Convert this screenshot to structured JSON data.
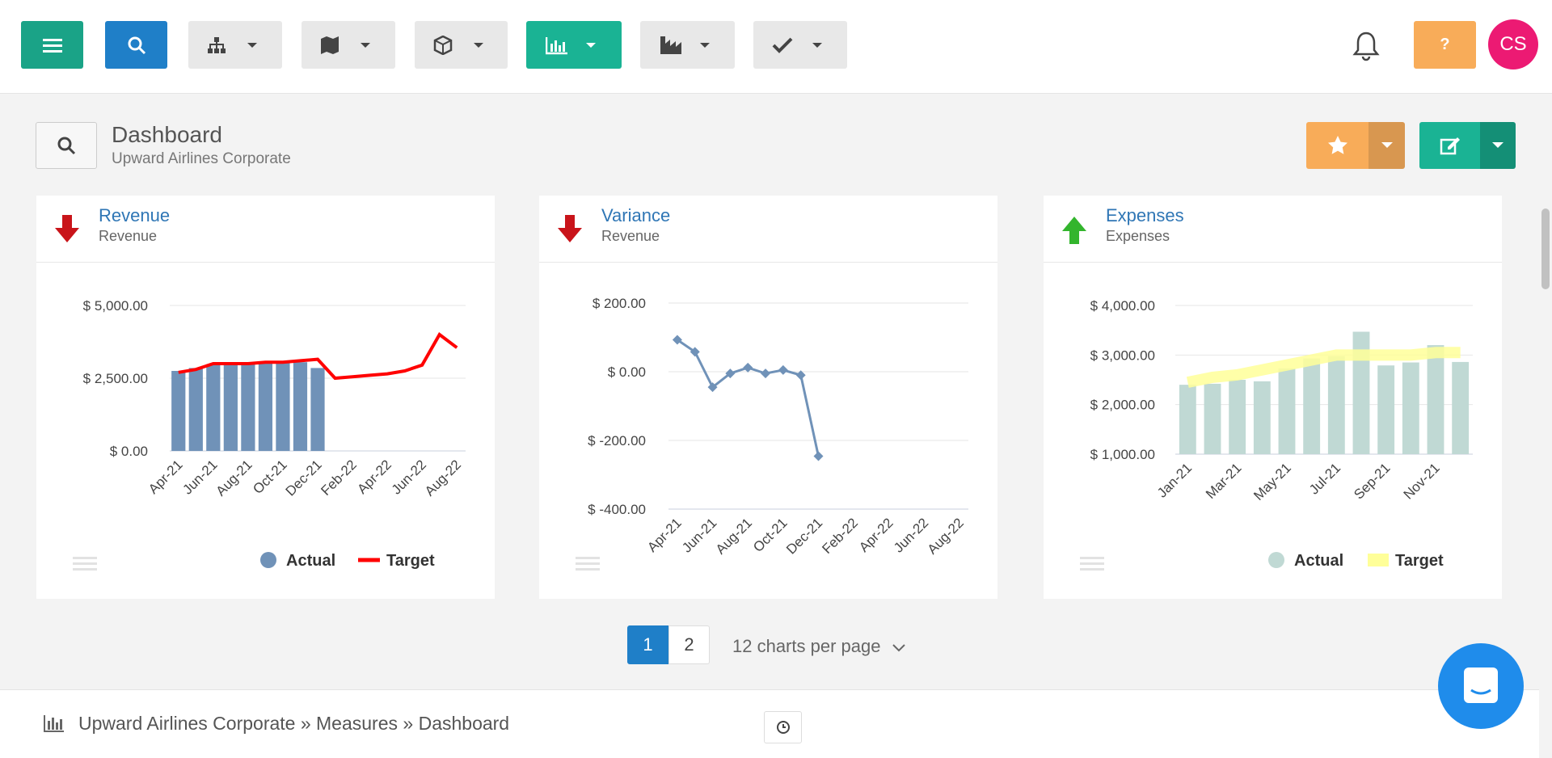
{
  "header": {
    "help_button": "?",
    "avatar": "CS"
  },
  "dashboard": {
    "title": "Dashboard",
    "subtitle": "Upward Airlines Corporate"
  },
  "charts": [
    {
      "title": "Revenue",
      "subtitle": "Revenue",
      "chart_data": {
        "type": "bar",
        "categories": [
          "Apr-21",
          null,
          "Jun-21",
          null,
          "Aug-21",
          null,
          "Oct-21",
          null,
          "Dec-21",
          null,
          "Feb-22",
          null,
          "Apr-22",
          null,
          "Jun-22",
          null,
          "Aug-22"
        ],
        "series": [
          {
            "name": "Actual",
            "type": "bar",
            "color": "#7092b8",
            "values": [
              2750,
              2850,
              2950,
              2950,
              3000,
              3000,
              3050,
              3050,
              2850,
              null,
              null,
              null,
              null,
              null,
              null,
              null,
              null
            ]
          },
          {
            "name": "Target",
            "type": "line",
            "color": "#ff0000",
            "values": [
              2700,
              2800,
              3000,
              3000,
              3000,
              3050,
              3050,
              3100,
              3150,
              2500,
              2550,
              2600,
              2650,
              2750,
              2950,
              4000,
              3550
            ]
          }
        ],
        "ylim": [
          0,
          5000
        ],
        "yticks": [
          {
            "value": 0,
            "label": "$ 0.00"
          },
          {
            "value": 2500,
            "label": "$ 2,500.00"
          },
          {
            "value": 5000,
            "label": "$ 5,000.00"
          }
        ],
        "grid": true,
        "legend": "bottom-right"
      }
    },
    {
      "title": "Variance",
      "subtitle": "Revenue",
      "chart_data": {
        "type": "line",
        "categories": [
          "Apr-21",
          null,
          "Jun-21",
          null,
          "Aug-21",
          null,
          "Oct-21",
          null,
          "Dec-21",
          null,
          "Feb-22",
          null,
          "Apr-22",
          null,
          "Jun-22",
          null,
          "Aug-22"
        ],
        "series": [
          {
            "name": "Variance",
            "type": "line",
            "color": "#7092b8",
            "values": [
              93,
              58,
              -45,
              -5,
              12,
              -5,
              5,
              -10,
              -246,
              null,
              null,
              null,
              null,
              null,
              null,
              null,
              null
            ]
          }
        ],
        "ylim": [
          -400,
          200
        ],
        "yticks": [
          {
            "value": -400,
            "label": "$ -400.00"
          },
          {
            "value": -200,
            "label": "$ -200.00"
          },
          {
            "value": 0,
            "label": "$ 0.00"
          },
          {
            "value": 200,
            "label": "$ 200.00"
          }
        ],
        "grid": true
      }
    },
    {
      "title": "Expenses",
      "subtitle": "Expenses",
      "chart_data": {
        "type": "bar",
        "categories": [
          "Jan-21",
          null,
          "Mar-21",
          null,
          "May-21",
          null,
          "Jul-21",
          null,
          "Sep-21",
          null,
          "Nov-21",
          null
        ],
        "series": [
          {
            "name": "Actual",
            "type": "bar",
            "color": "#c0d9d4",
            "values": [
              2400,
              2420,
              2500,
              2470,
              2730,
              2930,
              2980,
              3470,
              2790,
              2850,
              3200,
              2860
            ]
          },
          {
            "name": "Target",
            "type": "area",
            "color": "#ffff99",
            "values": [
              2450,
              2550,
              2600,
              2700,
              2800,
              2900,
              3000,
              3000,
              3000,
              3000,
              3050,
              3050
            ]
          }
        ],
        "ylim": [
          1000,
          4000
        ],
        "yticks": [
          {
            "value": 1000,
            "label": "$ 1,000.00"
          },
          {
            "value": 2000,
            "label": "$ 2,000.00"
          },
          {
            "value": 3000,
            "label": "$ 3,000.00"
          },
          {
            "value": 4000,
            "label": "$ 4,000.00"
          }
        ],
        "grid": true,
        "legend": "bottom-right"
      }
    }
  ],
  "pagination": {
    "pages": [
      1,
      2
    ],
    "current": 1,
    "per_page": "12 charts per page"
  },
  "breadcrumb": "Upward Airlines Corporate » Measures » Dashboard"
}
